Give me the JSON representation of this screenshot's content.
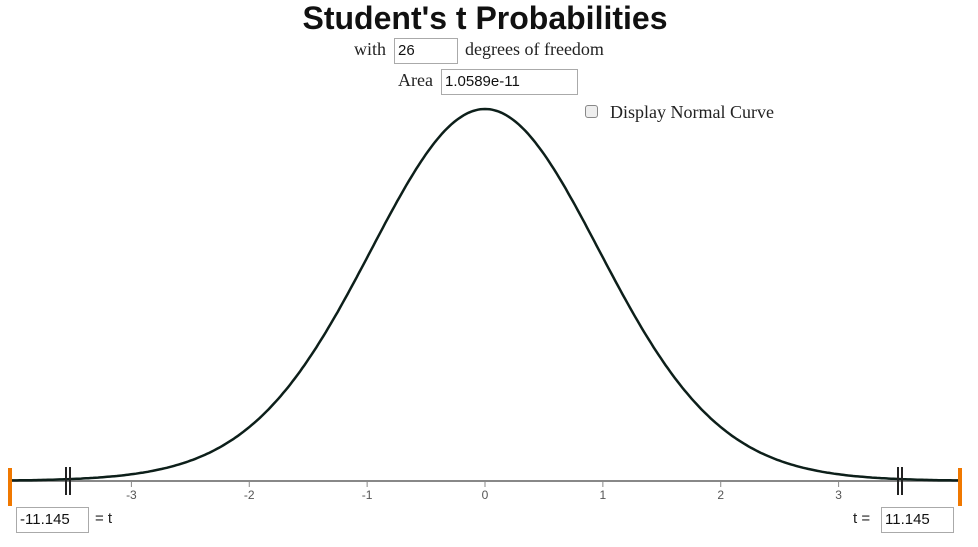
{
  "title": "Student's t Probabilities",
  "df_before": "with",
  "df": 26,
  "df_after": "degrees of freedom",
  "area_label": "Area",
  "area": "1.0589e-11",
  "normal_label": "Display Normal Curve",
  "lower_t": "-11.145",
  "lower_suffix": "= t",
  "upper_prefix": "t =",
  "upper_t": "11.145",
  "xlim": [
    -4.03,
    4.03
  ],
  "xticks": [
    -3,
    -2,
    -1,
    0,
    1,
    2,
    3
  ]
}
